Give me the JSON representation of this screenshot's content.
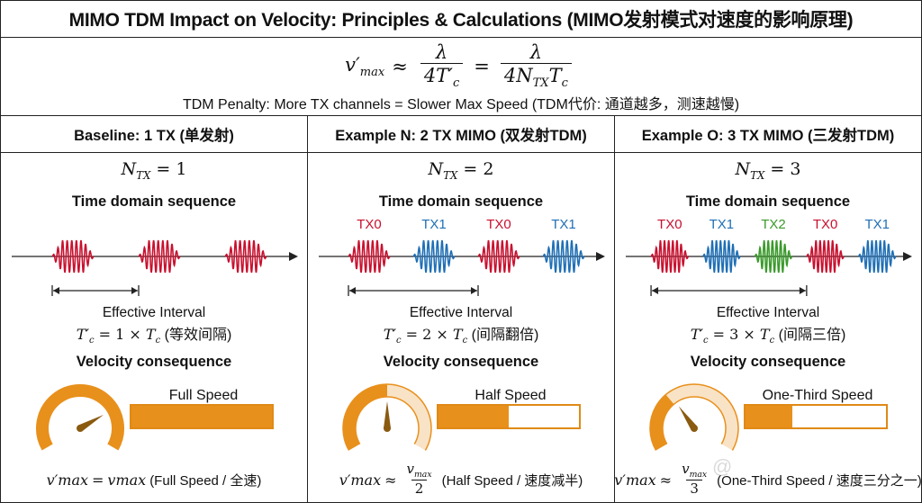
{
  "title": "MIMO TDM Impact on Velocity: Principles & Calculations (MIMO发射模式对速度的影响原理)",
  "formula": {
    "lhs": "v′",
    "lhs_sub": "max",
    "approx": "≈",
    "equals": "=",
    "frac1_num": "λ",
    "frac1_den": "4T′",
    "frac1_den_sub": "c",
    "frac2_num": "λ",
    "frac2_den_a": "4N",
    "frac2_den_a_sub": "TX",
    "frac2_den_b": "T",
    "frac2_den_b_sub": "c",
    "penalty": "TDM Penalty: More TX channels = Slower Max Speed (TDM代价: 通道越多，测速越慢)"
  },
  "labels": {
    "seq_heading": "Time domain sequence",
    "vel_heading": "Velocity consequence",
    "effective_interval": "Effective Interval",
    "ntx_symbol": "N",
    "ntx_sub": "TX",
    "tc_prime": "T′",
    "tc": "T",
    "tc_sub": "c",
    "vmax": "v",
    "vmax_sub": "max",
    "vmax_prime": "v′"
  },
  "colors": {
    "tx0": "#c8102e",
    "tx1": "#1f6fb5",
    "tx2": "#3a9a2b",
    "orange": "#e8901c",
    "gauge_light": "#f6c98c"
  },
  "panels": [
    {
      "header": "Baseline: 1 TX (单发射)",
      "ntx_eq": "= 1",
      "tx_count": 1,
      "bursts": [
        "TX0",
        "TX0",
        "TX0"
      ],
      "show_tx_labels": false,
      "multiplier": "= 1 × ",
      "interval_note": "(等效间隔)",
      "speed_label": "Full Speed",
      "speed_fraction": 1.0,
      "bottom_relation": "=",
      "bottom_den": "",
      "bottom_note": "(Full Speed / 全速)"
    },
    {
      "header": "Example N: 2 TX MIMO (双发射TDM)",
      "ntx_eq": "= 2",
      "tx_count": 2,
      "bursts": [
        "TX0",
        "TX1",
        "TX0",
        "TX1"
      ],
      "show_tx_labels": true,
      "multiplier": "= 2 × ",
      "interval_note": "(间隔翻倍)",
      "speed_label": "Half Speed",
      "speed_fraction": 0.5,
      "bottom_relation": "≈",
      "bottom_den": "2",
      "bottom_note": "(Half Speed / 速度减半)"
    },
    {
      "header": "Example O: 3 TX MIMO (三发射TDM)",
      "ntx_eq": "= 3",
      "tx_count": 3,
      "bursts": [
        "TX0",
        "TX1",
        "TX2",
        "TX0",
        "TX1"
      ],
      "show_tx_labels": true,
      "multiplier": "= 3 × ",
      "interval_note": "(间隔三倍)",
      "speed_label": "One-Third Speed",
      "speed_fraction": 0.333,
      "bottom_relation": "≈",
      "bottom_den": "3",
      "bottom_note": "(One-Third Speed / 速度三分之一)"
    }
  ]
}
